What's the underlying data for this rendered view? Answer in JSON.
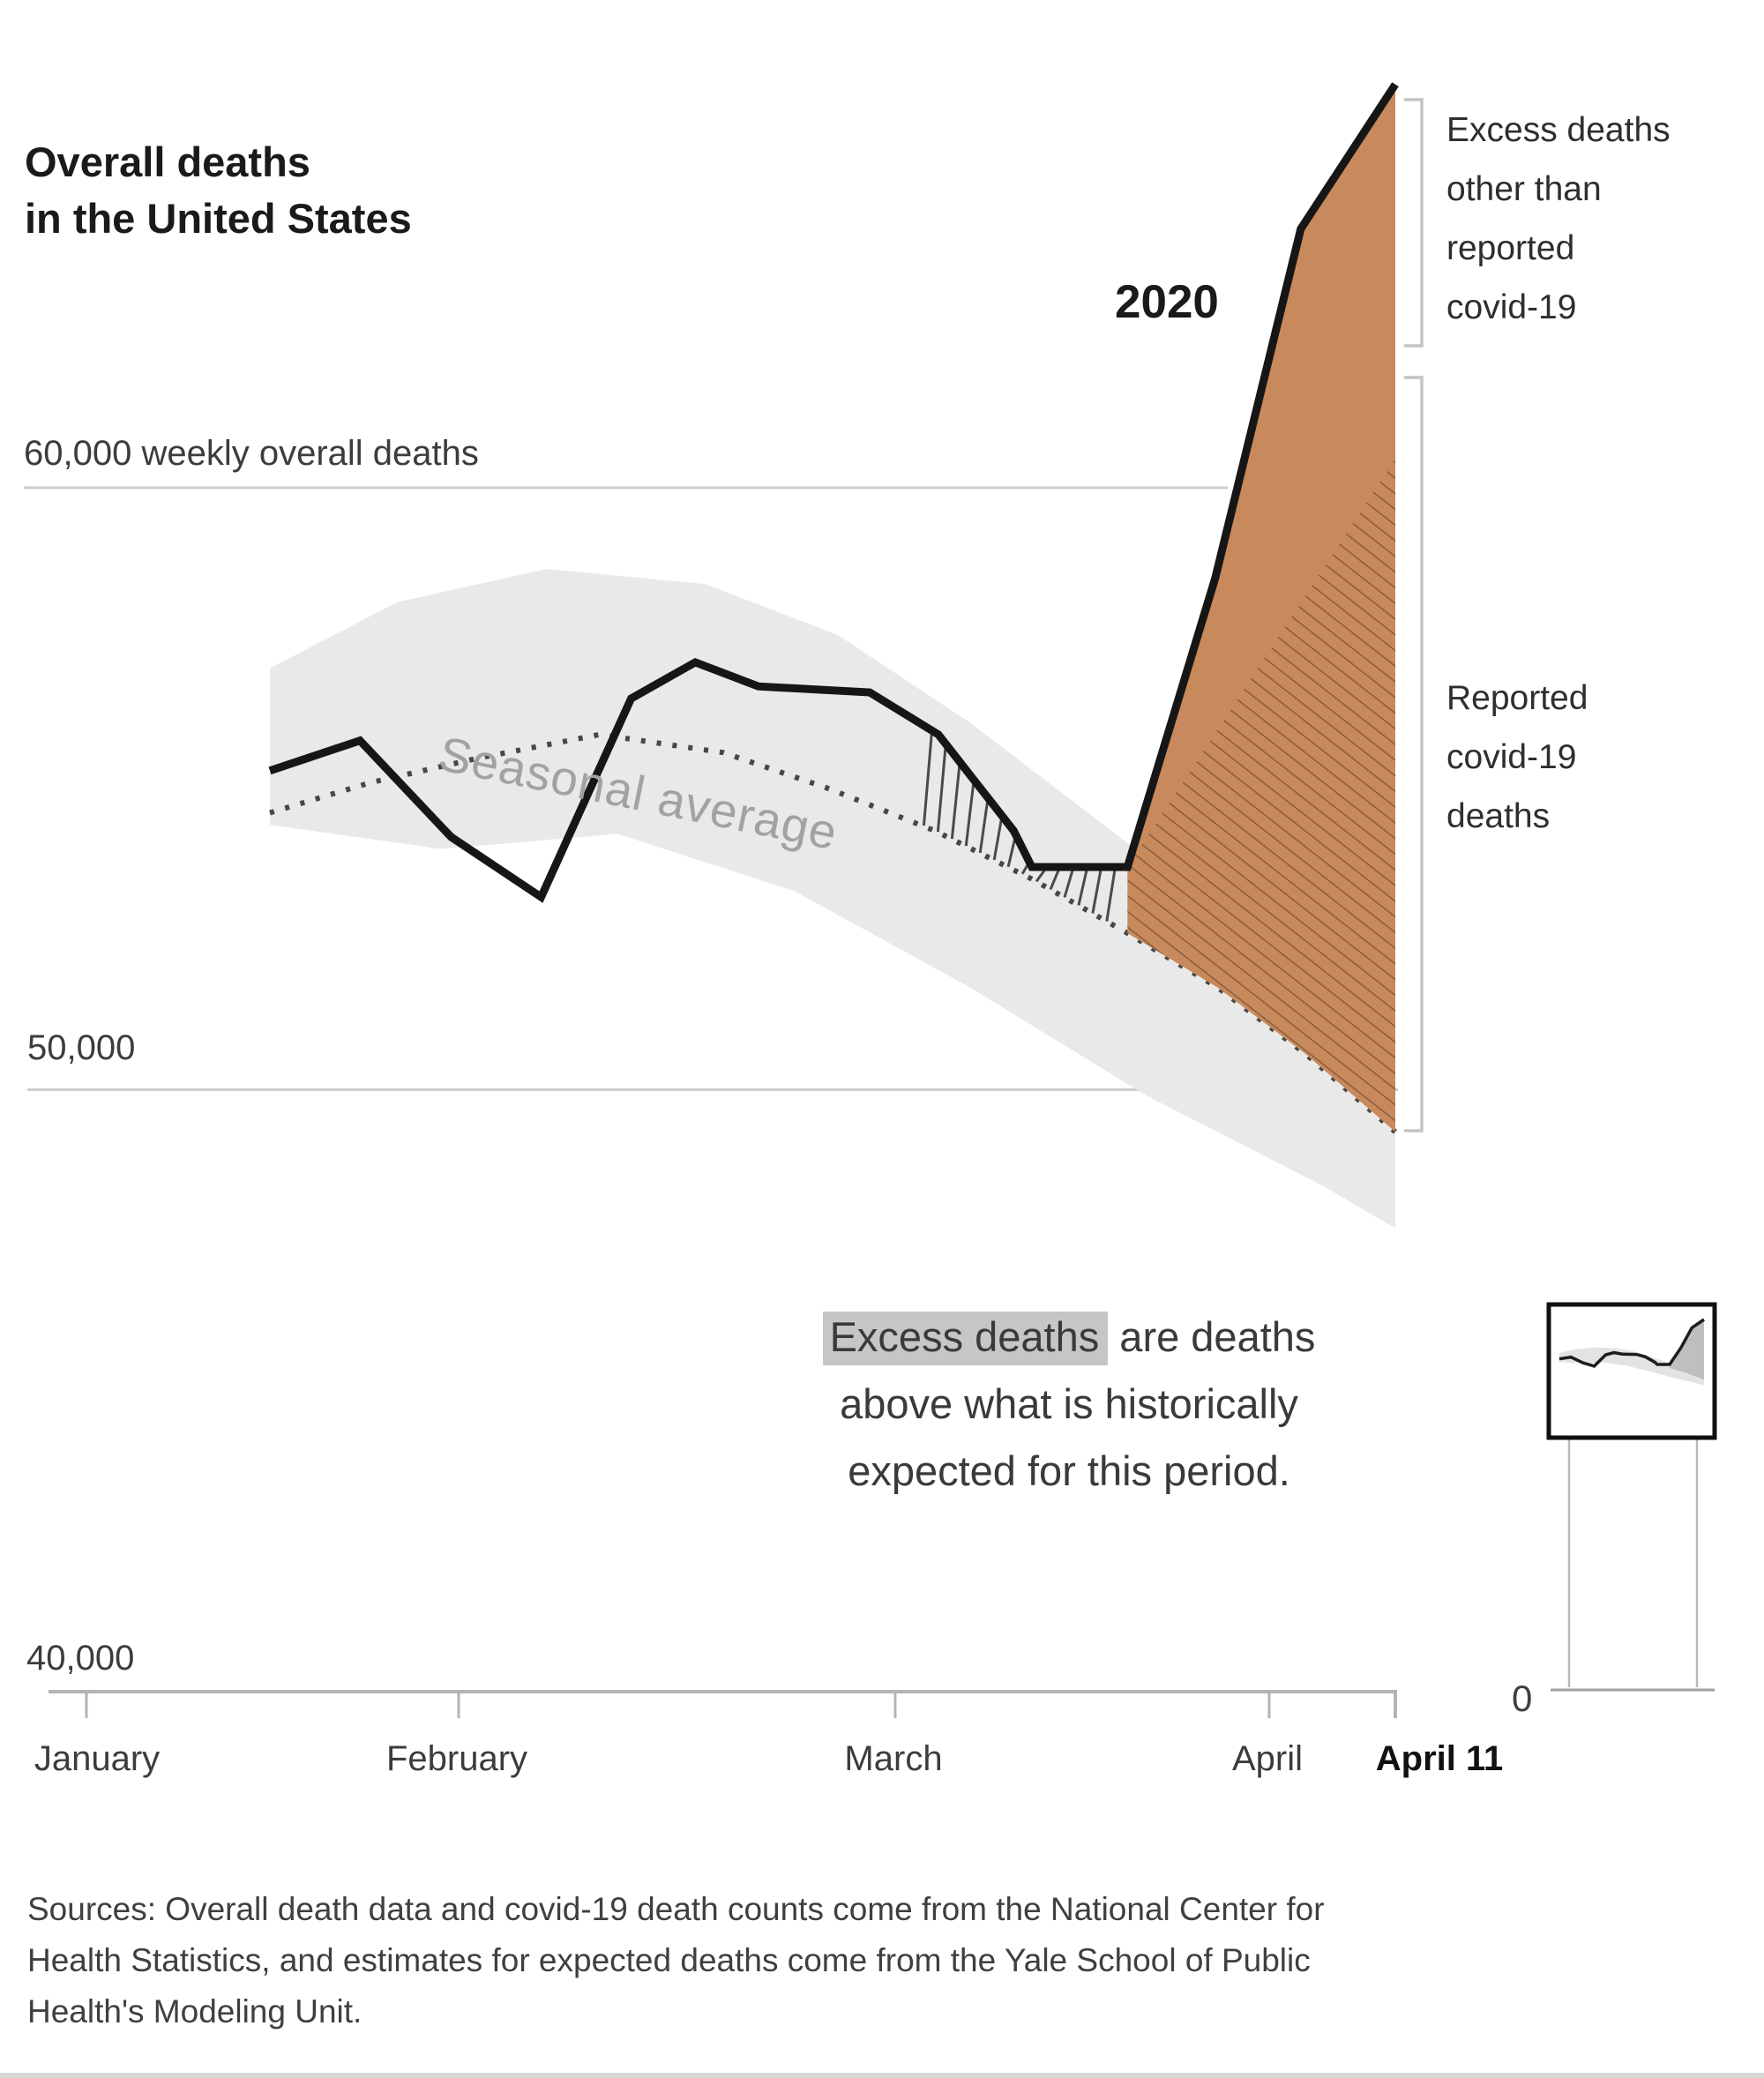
{
  "header": {
    "title_line1": "Overall deaths",
    "title_line2": "in the United States"
  },
  "chart": {
    "year_label": "2020",
    "y_axis": {
      "top_label": "60,000 weekly overall deaths",
      "mid_label": "50,000",
      "bottom_label": "40,000"
    },
    "x_axis": {
      "month_labels": [
        "January",
        "February",
        "March",
        "April"
      ],
      "end_label": "April 11"
    },
    "seasonal_label": "Seasonal average",
    "annotation_excess_line1": "Excess deaths",
    "annotation_excess_line2": "other than",
    "annotation_excess_line3": "reported",
    "annotation_excess_line4": "covid-19",
    "annotation_reported_line1": "Reported",
    "annotation_reported_line2": "covid-19",
    "annotation_reported_line3": "deaths",
    "inset_zero_label": "0"
  },
  "explainer": {
    "highlight": "Excess deaths",
    "line1_rest": " are deaths",
    "line2": "above what is historically",
    "line3": "expected for this period."
  },
  "sources": {
    "line1": "Sources: Overall death data and covid-19 death counts come from the National Center for",
    "line2": "Health Statistics, and estimates for expected deaths come from the Yale School of Public",
    "line3": "Health's Modeling Unit."
  },
  "colors": {
    "accent_orange": "#c8895c",
    "hatch_brown": "rgba(82,56,36,0.55)",
    "band_gray": "#e9e9e9",
    "line_black": "#161616",
    "dotted_gray": "#474747",
    "grid_gray": "#cdcdcd",
    "axis_gray": "#b4b4b4",
    "bracket_gray": "#c4c4c4",
    "highlight_gray": "#c6c6c6"
  },
  "chart_data": {
    "type": "line",
    "title": "Overall deaths in the United States",
    "ylabel": "weekly overall deaths",
    "ylim": [
      40000,
      67000
    ],
    "xrange": [
      "January",
      "April 11"
    ],
    "gridlines": [
      60000,
      50000,
      40000
    ],
    "legend_position": "annotations-right",
    "series": [
      {
        "name": "2020 weekly overall deaths",
        "style": "solid-black",
        "points": [
          [
            0,
            55300
          ],
          [
            0.08,
            55800
          ],
          [
            0.161,
            54200
          ],
          [
            0.241,
            53200
          ],
          [
            0.321,
            56500
          ],
          [
            0.378,
            57100
          ],
          [
            0.434,
            56700
          ],
          [
            0.533,
            56600
          ],
          [
            0.594,
            55900
          ],
          [
            0.661,
            54300
          ],
          [
            0.677,
            53700
          ],
          [
            0.762,
            53700
          ],
          [
            0.84,
            58500
          ],
          [
            0.916,
            64300
          ],
          [
            1,
            66700
          ]
        ]
      },
      {
        "name": "Seasonal average (expected deaths)",
        "style": "dotted-gray",
        "points": [
          [
            0,
            54600
          ],
          [
            0.089,
            55100
          ],
          [
            0.183,
            55500
          ],
          [
            0.293,
            55900
          ],
          [
            0.403,
            55600
          ],
          [
            0.497,
            55000
          ],
          [
            0.591,
            54300
          ],
          [
            0.677,
            53500
          ],
          [
            0.762,
            52600
          ],
          [
            0.842,
            51700
          ],
          [
            0.92,
            50600
          ],
          [
            1,
            49300
          ]
        ]
      },
      {
        "name": "Historical range band (top)",
        "style": "band-top",
        "points": [
          [
            0,
            57000
          ],
          [
            0.113,
            58100
          ],
          [
            0.246,
            58650
          ],
          [
            0.387,
            58400
          ],
          [
            0.505,
            57550
          ],
          [
            0.622,
            56100
          ],
          [
            0.762,
            54100
          ],
          [
            0.857,
            52600
          ],
          [
            0.936,
            51500
          ],
          [
            1,
            50700
          ]
        ]
      },
      {
        "name": "Historical range band (bottom)",
        "style": "band-bottom",
        "points": [
          [
            0,
            54400
          ],
          [
            0.152,
            54000
          ],
          [
            0.309,
            54250
          ],
          [
            0.466,
            53300
          ],
          [
            0.622,
            51700
          ],
          [
            0.779,
            49900
          ],
          [
            0.936,
            48400
          ],
          [
            1,
            47700
          ]
        ]
      }
    ],
    "annotations": [
      "Excess deaths other than reported covid-19 (solid orange area at peak)",
      "Reported covid-19 deaths (hatched orange area)",
      "Excess deaths are deaths above what is historically expected for this period."
    ],
    "peak_value_week_ending_april_11": 66700,
    "expected_value_week_ending_april_11": 49300
  }
}
